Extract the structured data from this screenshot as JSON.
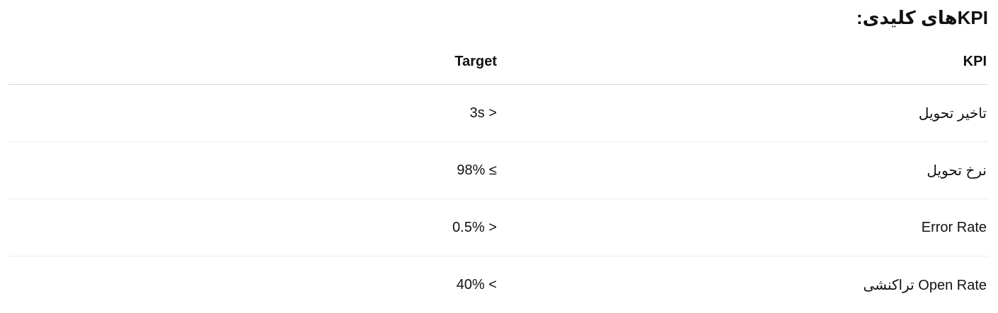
{
  "title": "KPIهای کلیدی:",
  "table": {
    "headers": [
      "KPI",
      "Target"
    ],
    "rows": [
      {
        "kpi": "تاخیر تحویل",
        "target": "< 3s"
      },
      {
        "kpi": "نرخ تحویل",
        "target": "≥ 98%"
      },
      {
        "kpi": "Error Rate",
        "target": "< 0.5%"
      },
      {
        "kpi": "Open Rate تراکنشی",
        "target": "> 40%"
      }
    ]
  }
}
